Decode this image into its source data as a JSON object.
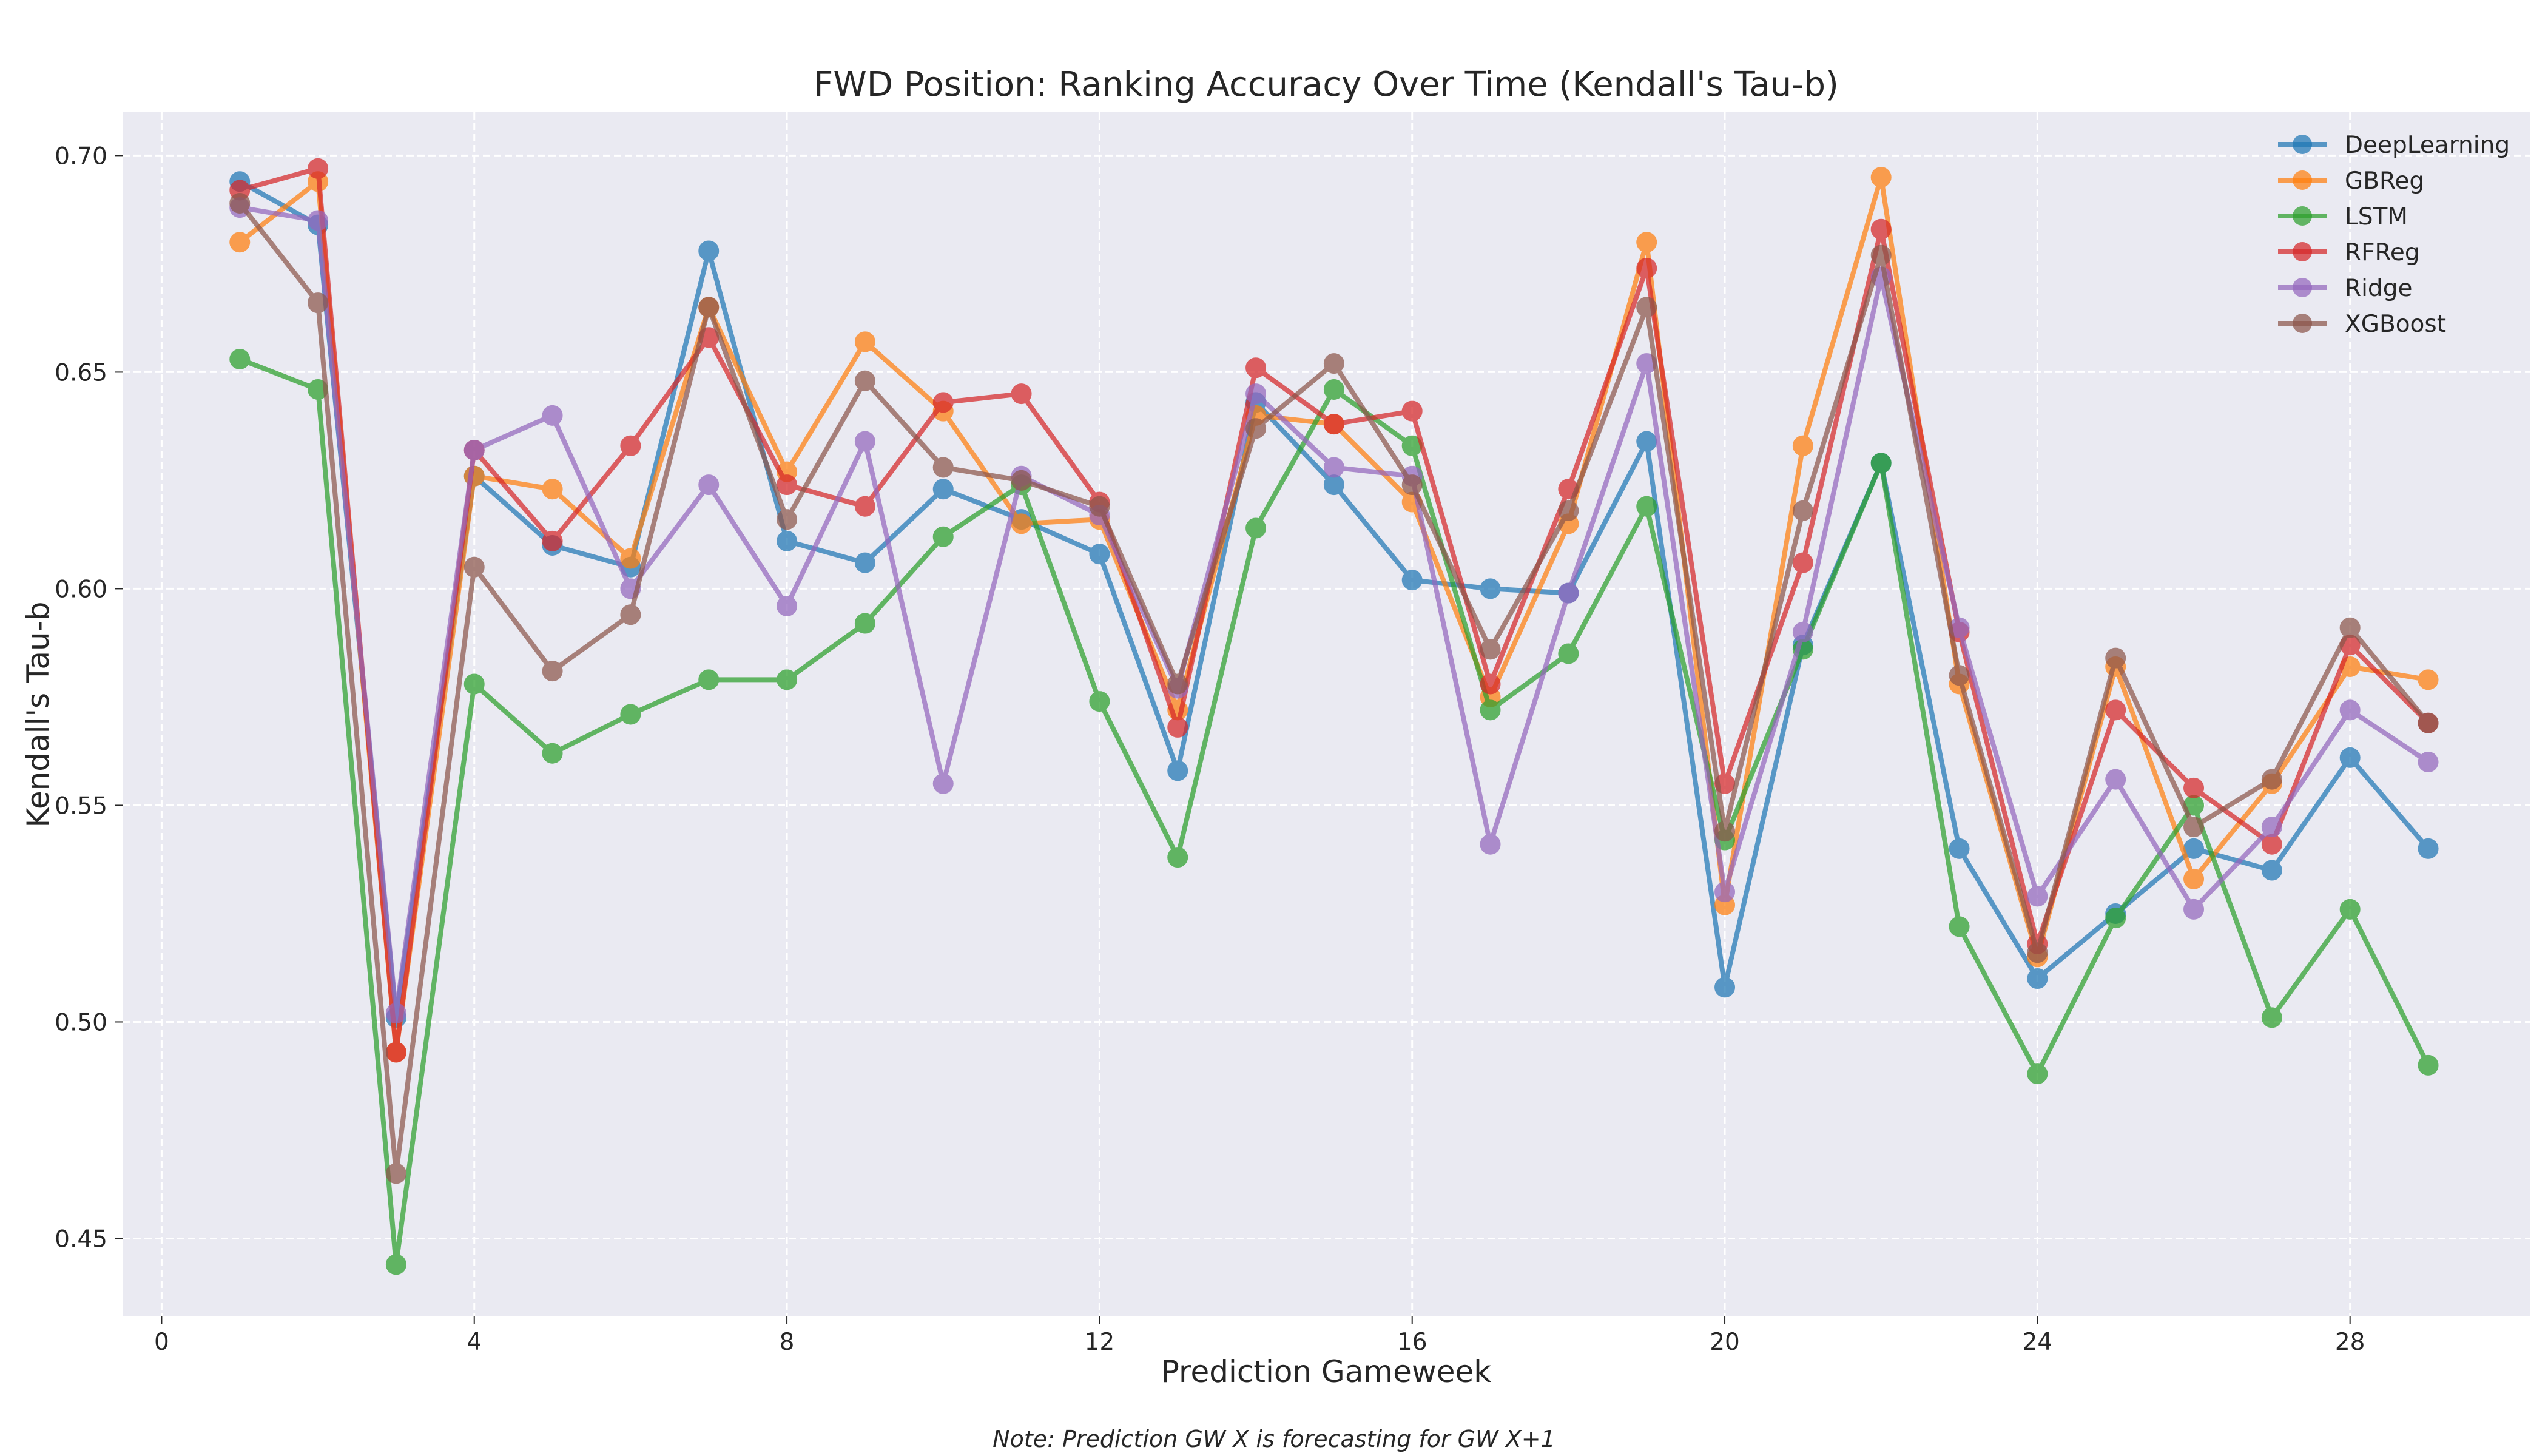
{
  "chart_data": {
    "type": "line",
    "title": "FWD Position: Ranking Accuracy Over Time (Kendall's Tau-b)",
    "xlabel": "Prediction Gameweek",
    "ylabel": "Kendall's Tau-b",
    "note": "Note: Prediction GW X is forecasting for GW X+1",
    "xlim": [
      -0.5,
      30.3
    ],
    "ylim": [
      0.432,
      0.71
    ],
    "xticks": [
      0,
      4,
      8,
      12,
      16,
      20,
      24,
      28
    ],
    "yticks": [
      0.45,
      0.5,
      0.55,
      0.6,
      0.65,
      0.7
    ],
    "grid": true,
    "legend_position": "top-right",
    "x": [
      1,
      2,
      3,
      4,
      5,
      6,
      7,
      8,
      9,
      10,
      11,
      12,
      13,
      14,
      15,
      16,
      17,
      18,
      19,
      20,
      21,
      22,
      23,
      24,
      25,
      26,
      27,
      28,
      29
    ],
    "series": [
      {
        "name": "DeepLearning",
        "color": "#1f77b4",
        "values": [
          0.694,
          0.684,
          0.501,
          0.626,
          0.61,
          0.605,
          0.678,
          0.611,
          0.606,
          0.623,
          0.616,
          0.608,
          0.558,
          0.643,
          0.624,
          0.602,
          0.6,
          0.599,
          0.634,
          0.508,
          0.587,
          0.629,
          0.54,
          0.51,
          0.525,
          0.54,
          0.535,
          0.561,
          0.54
        ]
      },
      {
        "name": "GBReg",
        "color": "#ff7f0e",
        "values": [
          0.68,
          0.694,
          0.493,
          0.626,
          0.623,
          0.607,
          0.665,
          0.627,
          0.657,
          0.641,
          0.615,
          0.616,
          0.572,
          0.64,
          0.638,
          0.62,
          0.575,
          0.615,
          0.68,
          0.527,
          0.633,
          0.695,
          0.578,
          0.515,
          0.582,
          0.533,
          0.555,
          0.582,
          0.579
        ]
      },
      {
        "name": "LSTM",
        "color": "#2ca02c",
        "values": [
          0.653,
          0.646,
          0.444,
          0.578,
          0.562,
          0.571,
          0.579,
          0.579,
          0.592,
          0.612,
          0.624,
          0.574,
          0.538,
          0.614,
          0.646,
          0.633,
          0.572,
          0.585,
          0.619,
          0.542,
          0.586,
          0.629,
          0.522,
          0.488,
          0.524,
          0.55,
          0.501,
          0.526,
          0.49
        ]
      },
      {
        "name": "RFReg",
        "color": "#d62728",
        "values": [
          0.692,
          0.697,
          0.493,
          0.632,
          0.611,
          0.633,
          0.658,
          0.624,
          0.619,
          0.643,
          0.645,
          0.62,
          0.568,
          0.651,
          0.638,
          0.641,
          0.578,
          0.623,
          0.674,
          0.555,
          0.606,
          0.683,
          0.59,
          0.518,
          0.572,
          0.554,
          0.541,
          0.587,
          0.569
        ]
      },
      {
        "name": "Ridge",
        "color": "#9467bd",
        "values": [
          0.688,
          0.685,
          0.502,
          0.632,
          0.64,
          0.6,
          0.624,
          0.596,
          0.634,
          0.555,
          0.626,
          0.617,
          0.577,
          0.645,
          0.628,
          0.626,
          0.541,
          0.599,
          0.652,
          0.53,
          0.59,
          0.672,
          0.591,
          0.529,
          0.556,
          0.526,
          0.545,
          0.572,
          0.56
        ]
      },
      {
        "name": "XGBoost",
        "color": "#8c564b",
        "values": [
          0.689,
          0.666,
          0.465,
          0.605,
          0.581,
          0.594,
          0.665,
          0.616,
          0.648,
          0.628,
          0.625,
          0.619,
          0.578,
          0.637,
          0.652,
          0.624,
          0.586,
          0.618,
          0.665,
          0.544,
          0.618,
          0.677,
          0.58,
          0.516,
          0.584,
          0.545,
          0.556,
          0.591,
          0.569
        ]
      }
    ]
  }
}
